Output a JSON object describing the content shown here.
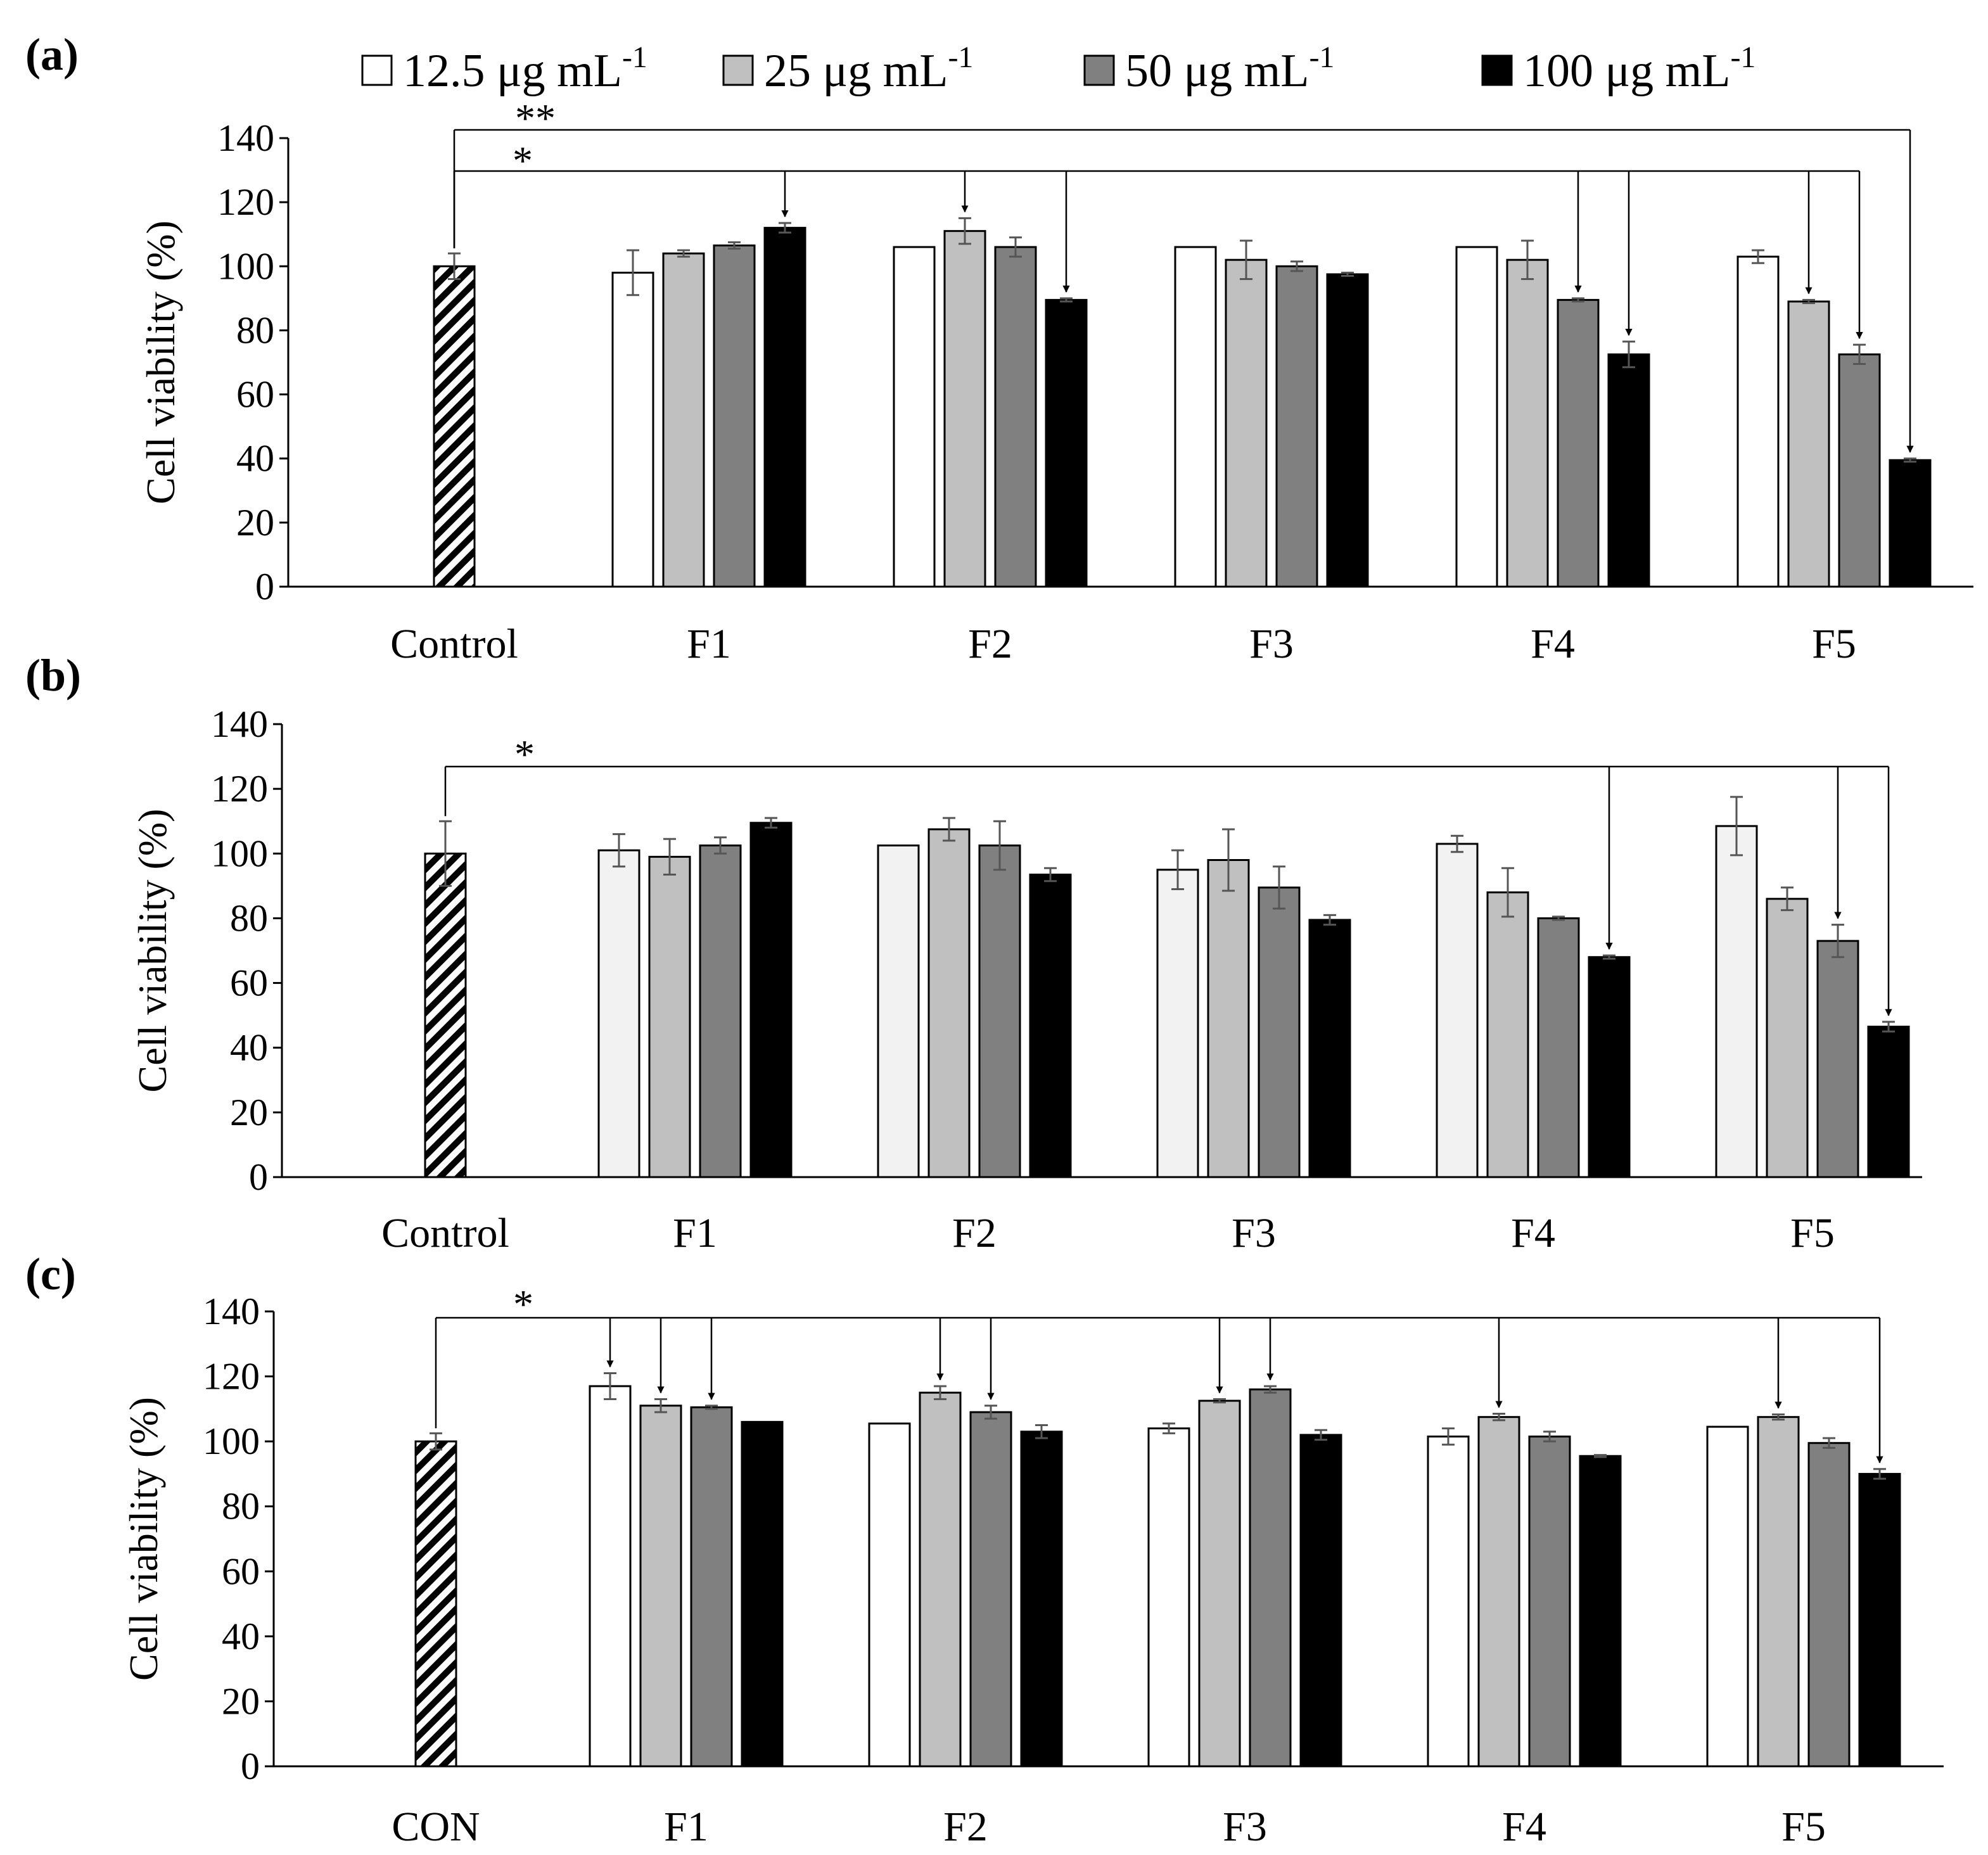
{
  "legend": {
    "items": [
      {
        "label": "12.5 μg mL",
        "sup": "-1",
        "color": "#ffffff"
      },
      {
        "label": "25 μg mL",
        "sup": "-1",
        "color": "#c0c0c0"
      },
      {
        "label": "50 μg mL",
        "sup": "-1",
        "color": "#808080"
      },
      {
        "label": "100 μg mL",
        "sup": "-1",
        "color": "#000000"
      }
    ]
  },
  "chart_data": [
    {
      "type": "bar",
      "panel_label": "(a)",
      "ylabel": "Cell viability (%)",
      "ylim": [
        0,
        140
      ],
      "yticks": [
        0,
        20,
        40,
        60,
        80,
        100,
        120,
        140
      ],
      "control": {
        "label": "Control",
        "value": 100,
        "error": 4
      },
      "categories": [
        "F1",
        "F2",
        "F3",
        "F4",
        "F5"
      ],
      "series": [
        {
          "name": "12.5 μg mL-1",
          "values": [
            98,
            106,
            106,
            106,
            103
          ],
          "errors": [
            7,
            0,
            0,
            0,
            2
          ]
        },
        {
          "name": "25 μg mL-1",
          "values": [
            104,
            111,
            102,
            102,
            89
          ],
          "errors": [
            1,
            4,
            6,
            6,
            0.5
          ]
        },
        {
          "name": "50 μg mL-1",
          "values": [
            106.5,
            106,
            100,
            89.5,
            72.5
          ],
          "errors": [
            1,
            3,
            1.5,
            0.5,
            3
          ]
        },
        {
          "name": "100 μg mL-1",
          "values": [
            112,
            89.5,
            97.5,
            72.5,
            39.5
          ],
          "errors": [
            1.5,
            0.5,
            0.5,
            4,
            0.5
          ]
        }
      ],
      "significance": [
        {
          "label": "**",
          "targets": [
            [
              4,
              3
            ]
          ]
        },
        {
          "label": "*",
          "targets": [
            [
              0,
              3
            ],
            [
              1,
              1
            ],
            [
              1,
              3
            ],
            [
              3,
              2
            ],
            [
              3,
              3
            ],
            [
              4,
              1
            ],
            [
              4,
              2
            ]
          ]
        }
      ]
    },
    {
      "type": "bar",
      "panel_label": "(b)",
      "ylabel": "Cell viability (%)",
      "ylim": [
        0,
        140
      ],
      "yticks": [
        0,
        20,
        40,
        60,
        80,
        100,
        120,
        140
      ],
      "control": {
        "label": "Control",
        "value": 100,
        "error": 10
      },
      "categories": [
        "F1",
        "F2",
        "F3",
        "F4",
        "F5"
      ],
      "series": [
        {
          "name": "12.5 μg mL-1",
          "values": [
            101,
            102.5,
            95,
            103,
            108.5
          ],
          "errors": [
            5,
            0,
            6,
            2.5,
            9
          ]
        },
        {
          "name": "25 μg mL-1",
          "values": [
            99,
            107.5,
            98,
            88,
            86
          ],
          "errors": [
            5.5,
            3.5,
            9.5,
            7.5,
            3.5
          ]
        },
        {
          "name": "50 μg mL-1",
          "values": [
            102.5,
            102.5,
            89.5,
            80,
            73
          ],
          "errors": [
            2.5,
            7.5,
            6.5,
            0.5,
            5
          ]
        },
        {
          "name": "100 μg mL-1",
          "values": [
            109.5,
            93.5,
            79.5,
            68,
            46.5
          ],
          "errors": [
            1.5,
            2,
            1.5,
            0.5,
            1.5
          ]
        }
      ],
      "significance": [
        {
          "label": "*",
          "targets": [
            [
              3,
              3
            ],
            [
              4,
              2
            ],
            [
              4,
              3
            ]
          ]
        }
      ]
    },
    {
      "type": "bar",
      "panel_label": "(c)",
      "ylabel": "Cell viability (%)",
      "ylim": [
        0,
        140
      ],
      "yticks": [
        0,
        20,
        40,
        60,
        80,
        100,
        120,
        140
      ],
      "control": {
        "label": "CON",
        "value": 100,
        "error": 2.5
      },
      "categories": [
        "F1",
        "F2",
        "F3",
        "F4",
        "F5"
      ],
      "series": [
        {
          "name": "12.5 μg mL-1",
          "values": [
            117,
            105.5,
            104,
            101.5,
            104.5
          ],
          "errors": [
            4,
            0,
            1.5,
            2.5,
            0
          ]
        },
        {
          "name": "25 μg mL-1",
          "values": [
            111,
            115,
            112.5,
            107.5,
            107.5
          ],
          "errors": [
            2,
            2,
            0.5,
            1,
            0.8
          ]
        },
        {
          "name": "50 μg mL-1",
          "values": [
            110.5,
            109,
            116,
            101.5,
            99.5
          ],
          "errors": [
            0.5,
            2,
            1,
            1.5,
            1.5
          ]
        },
        {
          "name": "100 μg mL-1",
          "values": [
            106,
            103,
            102,
            95.5,
            90
          ],
          "errors": [
            0,
            2,
            1.5,
            0.3,
            1.5
          ]
        }
      ],
      "significance": [
        {
          "label": "*",
          "targets": [
            [
              0,
              0
            ],
            [
              0,
              1
            ],
            [
              0,
              2
            ],
            [
              1,
              1
            ],
            [
              1,
              2
            ],
            [
              2,
              1
            ],
            [
              2,
              2
            ],
            [
              3,
              1
            ],
            [
              4,
              1
            ],
            [
              4,
              3
            ]
          ]
        }
      ]
    }
  ]
}
